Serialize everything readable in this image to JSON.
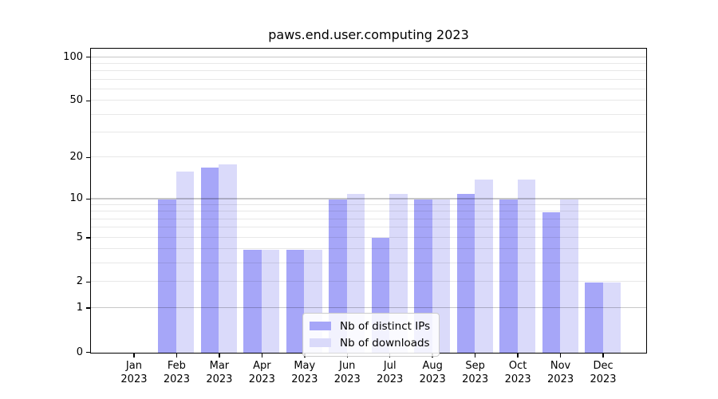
{
  "title": "paws.end.user.computing 2023",
  "chart_data": {
    "type": "bar",
    "title": "paws.end.user.computing 2023",
    "categories": [
      "Jan 2023",
      "Feb 2023",
      "Mar 2023",
      "Apr 2023",
      "May 2023",
      "Jun 2023",
      "Jul 2023",
      "Aug 2023",
      "Sep 2023",
      "Oct 2023",
      "Nov 2023",
      "Dec 2023"
    ],
    "series": [
      {
        "name": "Nb of distinct IPs",
        "color": "#a6a6f8",
        "values": [
          0,
          10,
          17,
          4,
          4,
          10,
          5,
          10,
          11,
          10,
          8,
          2
        ]
      },
      {
        "name": "Nb of downloads",
        "color": "#dadafa",
        "values": [
          0,
          16,
          18,
          4,
          4,
          11,
          11,
          10,
          14,
          14,
          10,
          2
        ]
      }
    ],
    "yscale": "log1p",
    "ylim": [
      0,
      110
    ],
    "y_ticks": [
      100,
      50,
      20,
      10,
      5,
      2,
      1,
      0
    ],
    "y_major_gridlines": [
      1,
      10,
      100
    ],
    "y_minor_gridlines": [
      2,
      3,
      4,
      5,
      6,
      7,
      8,
      9,
      20,
      30,
      40,
      50,
      60,
      70,
      80,
      90
    ],
    "grid": true,
    "legend_position": "lower center",
    "xlabel": "",
    "ylabel": ""
  },
  "colors": {
    "background": "#ffffff",
    "axis": "#000000",
    "major_grid": "#c7c7c7",
    "minor_grid": "#e8e8e8",
    "bar_ips": "#a6a6f8",
    "bar_downloads": "#dadafa"
  }
}
